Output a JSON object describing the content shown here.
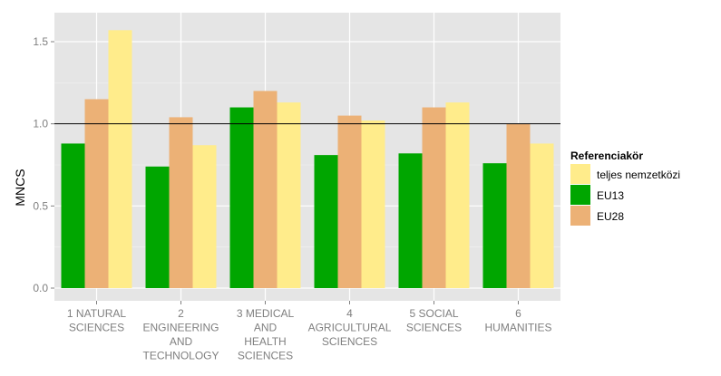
{
  "chart_data": {
    "type": "bar",
    "title": "",
    "xlabel": "",
    "ylabel": "MNCS",
    "ylim": [
      0,
      1.65
    ],
    "yticks": [
      "0.0",
      "0.5",
      "1.0",
      "1.5"
    ],
    "reference_line": 1.0,
    "grid": true,
    "legend_position": "right",
    "legend_title": "Referenciakör",
    "categories": [
      [
        "1 NATURAL",
        "SCIENCES"
      ],
      [
        "2",
        "ENGINEERING",
        "AND",
        "TECHNOLOGY"
      ],
      [
        "3 MEDICAL",
        "AND",
        "HEALTH",
        "SCIENCES"
      ],
      [
        "4",
        "AGRICULTURAL",
        "SCIENCES"
      ],
      [
        "5 SOCIAL",
        "SCIENCES"
      ],
      [
        "6",
        "HUMANITIES"
      ]
    ],
    "series": [
      {
        "name": "EU13",
        "color": "#00a600",
        "values": [
          0.88,
          0.74,
          1.1,
          0.81,
          0.82,
          0.76
        ]
      },
      {
        "name": "EU28",
        "color": "#ecb176",
        "values": [
          1.15,
          1.04,
          1.2,
          1.05,
          1.1,
          1.0
        ]
      },
      {
        "name": "teljes nemzetközi",
        "color": "#ffec8b",
        "values": [
          1.57,
          0.87,
          1.13,
          1.02,
          1.13,
          0.88
        ]
      }
    ],
    "legend_order": [
      "teljes nemzetközi",
      "EU13",
      "EU28"
    ]
  }
}
